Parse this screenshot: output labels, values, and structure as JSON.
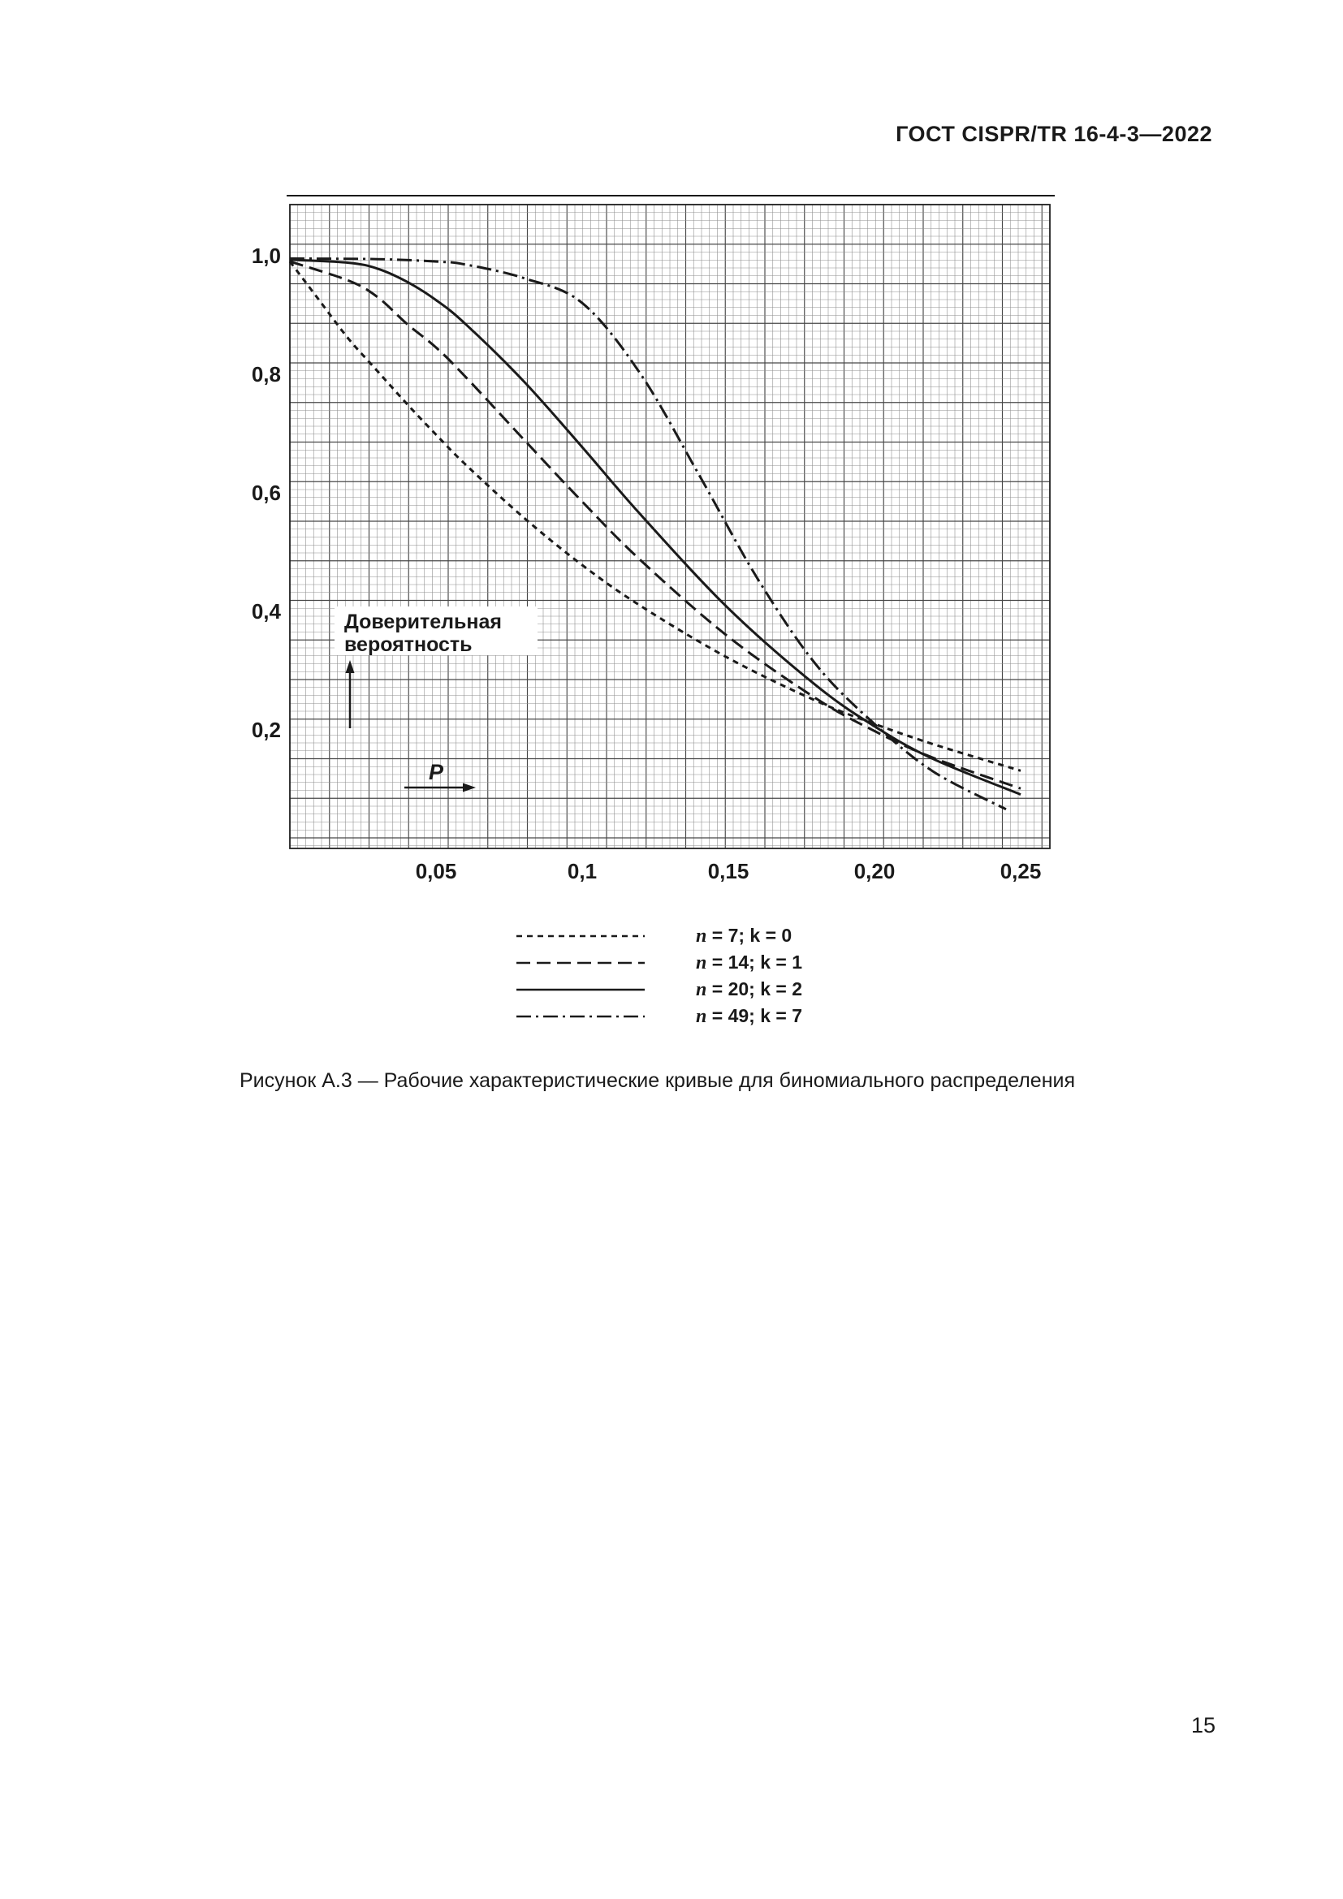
{
  "document": {
    "header_title": "ГОСТ CISPR/TR 16-4-3—2022",
    "caption": "Рисунок А.3 — Рабочие характеристические кривые для биномиального распределения",
    "page_number": "15"
  },
  "chart": {
    "annotation": {
      "box_line1": "Доверительная",
      "box_line2": "вероятность",
      "x_arrow_label": "P"
    },
    "colors": {
      "ink": "#1a1a1a",
      "grid_minor": "#909090",
      "grid_major": "#474747",
      "paper": "#ffffff"
    }
  },
  "legend": {
    "items": [
      {
        "symbol": "n",
        "rest": " = 7; k = 0"
      },
      {
        "symbol": "n",
        "rest": " = 14; k = 1"
      },
      {
        "symbol": "n",
        "rest": " = 20; k = 2"
      },
      {
        "symbol": "n",
        "rest": " = 49; k = 7"
      }
    ]
  },
  "chart_data": {
    "type": "line",
    "title": "Рабочие характеристические кривые для биномиального распределения",
    "xlabel": "P",
    "ylabel": "Доверительная вероятность",
    "xlim": [
      0,
      0.26
    ],
    "ylim": [
      0,
      1.086
    ],
    "grid": "fine graph-paper grid, minor cells with darker major lines every 5 cells",
    "legend_position": "below chart",
    "x_ticks": [
      {
        "value": 0.05,
        "label": "0,05"
      },
      {
        "value": 0.1,
        "label": "0,1"
      },
      {
        "value": 0.15,
        "label": "0,15"
      },
      {
        "value": 0.2,
        "label": "0,20"
      },
      {
        "value": 0.25,
        "label": "0,25"
      }
    ],
    "y_ticks": [
      {
        "value": 1.0,
        "label": "1,0"
      },
      {
        "value": 0.8,
        "label": "0,8"
      },
      {
        "value": 0.6,
        "label": "0,6"
      },
      {
        "value": 0.4,
        "label": "0,4"
      },
      {
        "value": 0.2,
        "label": "0,2"
      }
    ],
    "series": [
      {
        "id": "n7-k0",
        "name": "n = 7; k = 0",
        "line_style": "short-dash",
        "dash": "7 6",
        "points": [
          [
            0,
            0.99
          ],
          [
            0.01,
            0.925
          ],
          [
            0.02,
            0.86
          ],
          [
            0.03,
            0.805
          ],
          [
            0.04,
            0.75
          ],
          [
            0.05,
            0.698
          ],
          [
            0.06,
            0.648
          ],
          [
            0.08,
            0.558
          ],
          [
            0.1,
            0.478
          ],
          [
            0.12,
            0.409
          ],
          [
            0.15,
            0.321
          ],
          [
            0.18,
            0.249
          ],
          [
            0.2,
            0.21
          ],
          [
            0.22,
            0.176
          ],
          [
            0.25,
            0.131
          ]
        ]
      },
      {
        "id": "n14-k1",
        "name": "n = 14; k = 1",
        "line_style": "long-dash",
        "dash": "17 8",
        "points": [
          [
            0,
            0.99
          ],
          [
            0.02,
            0.958
          ],
          [
            0.03,
            0.93
          ],
          [
            0.04,
            0.885
          ],
          [
            0.05,
            0.845
          ],
          [
            0.06,
            0.796
          ],
          [
            0.08,
            0.69
          ],
          [
            0.1,
            0.585
          ],
          [
            0.12,
            0.486
          ],
          [
            0.15,
            0.357
          ],
          [
            0.18,
            0.253
          ],
          [
            0.2,
            0.198
          ],
          [
            0.22,
            0.153
          ],
          [
            0.25,
            0.101
          ]
        ]
      },
      {
        "id": "n20-k2",
        "name": "n = 20; k = 2",
        "line_style": "solid",
        "dash": "",
        "points": [
          [
            0,
            0.993
          ],
          [
            0.02,
            0.988
          ],
          [
            0.03,
            0.978
          ],
          [
            0.04,
            0.956
          ],
          [
            0.05,
            0.925
          ],
          [
            0.06,
            0.885
          ],
          [
            0.08,
            0.788
          ],
          [
            0.1,
            0.677
          ],
          [
            0.12,
            0.563
          ],
          [
            0.15,
            0.405
          ],
          [
            0.18,
            0.275
          ],
          [
            0.2,
            0.206
          ],
          [
            0.22,
            0.151
          ],
          [
            0.25,
            0.091
          ]
        ]
      },
      {
        "id": "n49-k7",
        "name": "n = 49; k = 7",
        "line_style": "dash-dot",
        "dash": "18 6 3 6",
        "points": [
          [
            0,
            0.995
          ],
          [
            0.03,
            0.994
          ],
          [
            0.05,
            0.99
          ],
          [
            0.06,
            0.985
          ],
          [
            0.08,
            0.962
          ],
          [
            0.1,
            0.92
          ],
          [
            0.12,
            0.8
          ],
          [
            0.14,
            0.63
          ],
          [
            0.16,
            0.455
          ],
          [
            0.18,
            0.31
          ],
          [
            0.2,
            0.21
          ],
          [
            0.22,
            0.13
          ],
          [
            0.245,
            0.066
          ]
        ]
      }
    ]
  }
}
